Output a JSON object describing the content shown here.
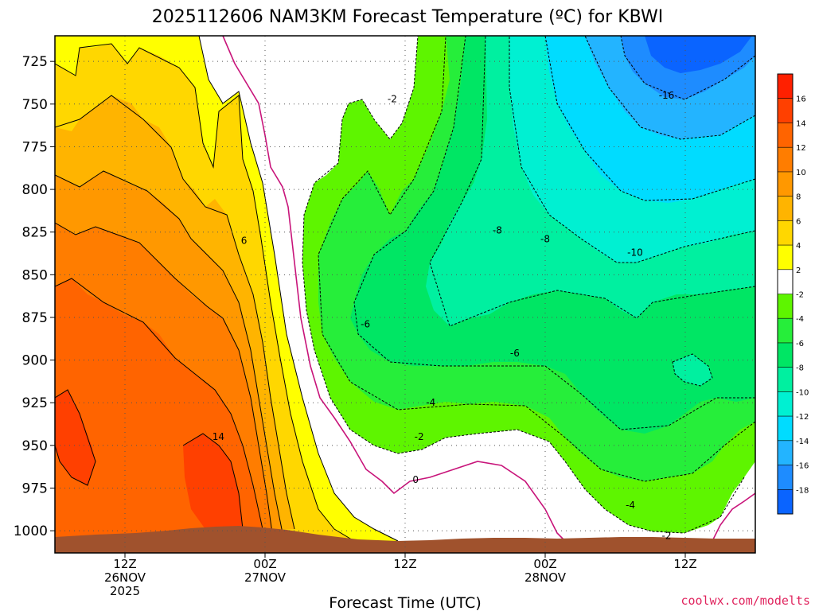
{
  "chart_data": {
    "type": "heatmap",
    "title": "2025112606 NAM3KM Forecast Temperature (ºC) for KBWI",
    "xlabel": "Forecast Time (UTC)",
    "ylabel": "",
    "x_ticks": [
      {
        "hour": 6,
        "label1": "12Z",
        "label2": "26NOV",
        "label3": "2025"
      },
      {
        "hour": 18,
        "label1": "00Z",
        "label2": "27NOV",
        "label3": ""
      },
      {
        "hour": 30,
        "label1": "12Z",
        "label2": "",
        "label3": ""
      },
      {
        "hour": 42,
        "label1": "00Z",
        "label2": "28NOV",
        "label3": ""
      },
      {
        "hour": 54,
        "label1": "12Z",
        "label2": "",
        "label3": ""
      }
    ],
    "xlim": [
      0,
      60
    ],
    "y_ticks": [
      725,
      750,
      775,
      800,
      825,
      850,
      875,
      900,
      925,
      950,
      975,
      1000
    ],
    "ylim": [
      1013,
      710
    ],
    "colorbar": {
      "levels": [
        -20,
        -18,
        -16,
        -14,
        -12,
        -10,
        -8,
        -6,
        -4,
        -2,
        2,
        4,
        6,
        8,
        10,
        12,
        14,
        16,
        18
      ],
      "tick_labels": [
        "-18",
        "-16",
        "-14",
        "-12",
        "-10",
        "-8",
        "-6",
        "-4",
        "-2",
        "2",
        "4",
        "6",
        "8",
        "10",
        "12",
        "14",
        "16"
      ],
      "colors": [
        "#0a64ff",
        "#1e8cff",
        "#23b4ff",
        "#00dcff",
        "#00f0d2",
        "#00f0a0",
        "#00e664",
        "#26ee3a",
        "#5ef500",
        "#ffffff",
        "#ffff00",
        "#ffd700",
        "#ffb400",
        "#ff9800",
        "#ff7d00",
        "#ff6400",
        "#ff4000",
        "#ff2000"
      ]
    },
    "series": [
      {
        "name": "temp_profile_hour_0",
        "hour": 0,
        "pressure": [
          725,
          750,
          775,
          800,
          825,
          850,
          875,
          900,
          925,
          950,
          975,
          1000
        ],
        "values": [
          3.5,
          5.5,
          7,
          8.5,
          9.5,
          11,
          12,
          13,
          14.5,
          15,
          13.5,
          12
        ]
      },
      {
        "name": "temp_profile_hour_6",
        "hour": 6,
        "pressure": [
          725,
          750,
          775,
          800,
          825,
          850,
          875,
          900,
          925,
          950,
          975,
          1000
        ],
        "values": [
          3,
          5,
          7,
          8,
          9.5,
          11,
          12,
          13,
          13.5,
          14.5,
          13.5,
          12
        ]
      },
      {
        "name": "temp_profile_hour_12",
        "hour": 12,
        "pressure": [
          725,
          750,
          775,
          800,
          825,
          850,
          875,
          900,
          925,
          950,
          975,
          1000
        ],
        "values": [
          2.5,
          4.5,
          6,
          7,
          8,
          9.5,
          10.5,
          12,
          13,
          14,
          14.5,
          13
        ]
      },
      {
        "name": "temp_profile_hour_18",
        "hour": 18,
        "pressure": [
          725,
          750,
          775,
          800,
          825,
          850,
          875,
          900,
          925,
          950,
          975,
          1000
        ],
        "values": [
          0.5,
          1.5,
          2,
          3,
          3.5,
          4,
          5,
          6,
          7,
          8,
          9,
          10
        ]
      },
      {
        "name": "temp_profile_hour_24",
        "hour": 24,
        "pressure": [
          725,
          750,
          775,
          800,
          825,
          850,
          875,
          900,
          925,
          950,
          975,
          1000
        ],
        "values": [
          -0.5,
          -1,
          -2,
          -3,
          -4,
          -4,
          -4,
          -3,
          -2,
          0,
          2,
          4
        ]
      },
      {
        "name": "temp_profile_hour_36",
        "hour": 36,
        "pressure": [
          725,
          750,
          775,
          800,
          825,
          850,
          875,
          900,
          925,
          950,
          975,
          1000
        ],
        "values": [
          -5,
          -6,
          -7,
          -7.5,
          -8,
          -7.5,
          -7,
          -6,
          -4.5,
          -2.5,
          0,
          1
        ]
      },
      {
        "name": "temp_profile_hour_48",
        "hour": 48,
        "pressure": [
          725,
          750,
          775,
          800,
          825,
          850,
          875,
          900,
          925,
          950,
          975,
          1000
        ],
        "values": [
          -13,
          -12,
          -11,
          -10.5,
          -10,
          -8.5,
          -8,
          -7.5,
          -6.5,
          -5,
          -3.5,
          -2
        ]
      },
      {
        "name": "temp_profile_hour_54",
        "hour": 54,
        "pressure": [
          725,
          750,
          775,
          800,
          825,
          850,
          875,
          900,
          925,
          950,
          975,
          1000
        ],
        "values": [
          -15,
          -16,
          -12,
          -10.5,
          -10,
          -8.5,
          -8,
          -8,
          -6.5,
          -5,
          -3,
          -1.5
        ]
      },
      {
        "name": "temp_profile_hour_60",
        "hour": 60,
        "pressure": [
          725,
          750,
          775,
          800,
          825,
          850,
          875,
          900,
          925,
          950,
          975,
          1000
        ],
        "values": [
          -16,
          -14,
          -12,
          -10.5,
          -10,
          -8.5,
          -8,
          -7,
          -5,
          -3,
          -1,
          1
        ]
      }
    ],
    "contour_labels": [
      {
        "text": "-2",
        "hour": 28.9,
        "pressure": 747
      },
      {
        "text": "6",
        "hour": 16.2,
        "pressure": 830
      },
      {
        "text": "-6",
        "hour": 26.6,
        "pressure": 879
      },
      {
        "text": "-8",
        "hour": 37.9,
        "pressure": 824
      },
      {
        "text": "-8",
        "hour": 42.0,
        "pressure": 829
      },
      {
        "text": "-10",
        "hour": 49.7,
        "pressure": 837
      },
      {
        "text": "-16",
        "hour": 52.4,
        "pressure": 745
      },
      {
        "text": "-6",
        "hour": 39.4,
        "pressure": 896
      },
      {
        "text": "-4",
        "hour": 32.2,
        "pressure": 925
      },
      {
        "text": "-2",
        "hour": 31.2,
        "pressure": 945
      },
      {
        "text": "14",
        "hour": 14.0,
        "pressure": 945
      },
      {
        "text": "0",
        "hour": 30.9,
        "pressure": 970
      },
      {
        "text": "-4",
        "hour": 49.3,
        "pressure": 985
      },
      {
        "text": "-2",
        "hour": 52.4,
        "pressure": 1003
      }
    ]
  },
  "credit": "coolwx.com/modelts"
}
